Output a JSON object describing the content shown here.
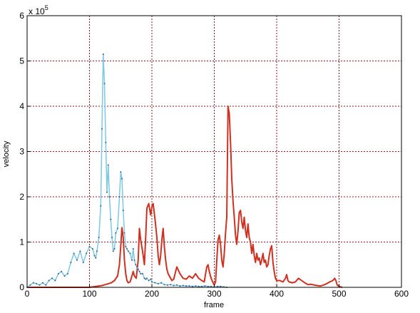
{
  "chart_data": {
    "type": "line",
    "xlabel": "frame",
    "ylabel": "velocity",
    "exponent_label": "x 10",
    "exponent_power": "5",
    "xlim": [
      0,
      600
    ],
    "ylim": [
      0,
      6
    ],
    "xticks": [
      "0",
      "100",
      "200",
      "300",
      "400",
      "500",
      "600"
    ],
    "yticks": [
      "0",
      "1",
      "2",
      "3",
      "4",
      "5",
      "6"
    ],
    "grid": true,
    "background": "#ffffff",
    "grid_color": "#8b1a1a",
    "series": [
      {
        "color": "#d03020",
        "x": [
          0,
          10,
          20,
          30,
          40,
          50,
          60,
          70,
          80,
          90,
          100,
          110,
          120,
          125,
          130,
          135,
          140,
          145,
          148,
          150,
          152,
          154,
          156,
          158,
          160,
          162,
          165,
          168,
          170,
          172,
          175,
          178,
          180,
          182,
          185,
          188,
          190,
          192,
          195,
          198,
          200,
          202,
          205,
          208,
          210,
          212,
          214,
          216,
          218,
          220,
          222,
          224,
          226,
          228,
          230,
          232,
          235,
          238,
          240,
          245,
          250,
          255,
          260,
          265,
          270,
          275,
          280,
          284,
          286,
          288,
          290,
          292,
          295,
          298,
          300,
          302,
          304,
          306,
          308,
          310,
          312,
          314,
          316,
          318,
          320,
          322,
          324,
          326,
          328,
          330,
          332,
          334,
          336,
          338,
          340,
          342,
          344,
          346,
          348,
          350,
          352,
          354,
          356,
          358,
          360,
          362,
          364,
          366,
          368,
          370,
          372,
          374,
          376,
          378,
          380,
          382,
          384,
          386,
          388,
          390,
          392,
          394,
          396,
          398,
          400,
          405,
          410,
          414,
          416,
          418,
          420,
          425,
          430,
          435,
          440,
          445,
          450,
          455,
          460,
          465,
          470,
          475,
          480,
          485,
          490,
          493,
          495,
          497,
          500,
          505
        ],
        "y": [
          0,
          0,
          0,
          0,
          0,
          0,
          0,
          0,
          0,
          0,
          0,
          0.02,
          0.04,
          0.06,
          0.08,
          0.1,
          0.15,
          0.25,
          0.5,
          0.9,
          1.32,
          1.1,
          0.6,
          0.3,
          0.15,
          0.1,
          0.12,
          0.25,
          0.35,
          0.25,
          0.2,
          0.6,
          1.3,
          1.05,
          0.8,
          0.5,
          1.1,
          1.75,
          1.85,
          1.6,
          1.78,
          1.85,
          1.5,
          1.1,
          0.7,
          0.5,
          0.7,
          1.05,
          1.3,
          0.9,
          0.6,
          0.4,
          0.3,
          0.25,
          0.2,
          0.15,
          0.18,
          0.35,
          0.45,
          0.3,
          0.2,
          0.18,
          0.25,
          0.2,
          0.3,
          0.2,
          0.15,
          0.12,
          0.3,
          0.45,
          0.5,
          0.35,
          0.2,
          0.1,
          0.05,
          0.12,
          0.6,
          1.05,
          1.15,
          0.95,
          0.6,
          0.45,
          0.75,
          1.2,
          1.55,
          4.0,
          3.85,
          3.2,
          2.4,
          1.9,
          1.55,
          1.15,
          0.95,
          1.25,
          1.65,
          1.7,
          1.45,
          1.3,
          1.55,
          1.25,
          1.1,
          1.4,
          1.1,
          1.0,
          0.75,
          0.95,
          0.7,
          0.55,
          0.75,
          0.6,
          0.65,
          0.5,
          0.6,
          0.75,
          0.55,
          0.6,
          0.45,
          0.5,
          0.7,
          0.85,
          0.92,
          0.55,
          0.35,
          0.2,
          0.15,
          0.15,
          0.12,
          0.2,
          0.28,
          0.15,
          0.12,
          0.1,
          0.12,
          0.2,
          0.15,
          0.1,
          0.06,
          0.07,
          0.05,
          0.04,
          0.03,
          0.05,
          0.08,
          0.12,
          0.15,
          0.2,
          0.15,
          0.05,
          0.02,
          0.0
        ]
      },
      {
        "color": "#7ec8e3",
        "x": [
          0,
          5,
          10,
          15,
          20,
          25,
          30,
          35,
          40,
          45,
          50,
          55,
          60,
          65,
          70,
          75,
          80,
          85,
          90,
          95,
          100,
          105,
          108,
          110,
          112,
          115,
          118,
          120,
          122,
          124,
          126,
          128,
          130,
          132,
          134,
          136,
          138,
          140,
          142,
          145,
          148,
          150,
          152,
          154,
          156,
          158,
          160,
          162,
          165,
          168,
          170,
          172,
          174,
          176,
          178,
          180,
          182,
          185,
          188,
          190,
          192,
          195,
          198,
          200,
          205,
          210,
          215,
          220,
          225,
          230,
          235,
          240,
          245,
          250,
          255,
          260,
          265,
          270,
          275,
          280,
          285,
          290,
          295,
          300,
          305,
          310,
          315,
          320
        ],
        "y": [
          0,
          0.05,
          0.1,
          0.08,
          0.05,
          0.1,
          0.05,
          0.15,
          0.2,
          0.15,
          0.3,
          0.35,
          0.25,
          0.3,
          0.55,
          0.75,
          0.6,
          0.8,
          0.55,
          0.75,
          0.9,
          0.85,
          0.7,
          0.65,
          0.8,
          1.1,
          1.8,
          3.5,
          5.15,
          4.5,
          3.2,
          2.1,
          2.7,
          2.0,
          1.5,
          1.1,
          0.8,
          0.85,
          1.2,
          1.3,
          2.0,
          2.55,
          2.4,
          1.7,
          1.2,
          0.9,
          0.85,
          0.8,
          0.75,
          0.6,
          0.85,
          0.6,
          0.5,
          0.45,
          0.4,
          0.35,
          0.3,
          0.3,
          0.2,
          0.18,
          0.2,
          0.15,
          0.18,
          0.12,
          0.1,
          0.08,
          0.1,
          0.06,
          0.05,
          0.06,
          0.04,
          0.05,
          0.03,
          0.04,
          0.03,
          0.03,
          0.02,
          0.03,
          0.02,
          0.02,
          0.03,
          0.02,
          0.02,
          0.01,
          0.02,
          0.02,
          0.01,
          0.0
        ]
      }
    ]
  }
}
